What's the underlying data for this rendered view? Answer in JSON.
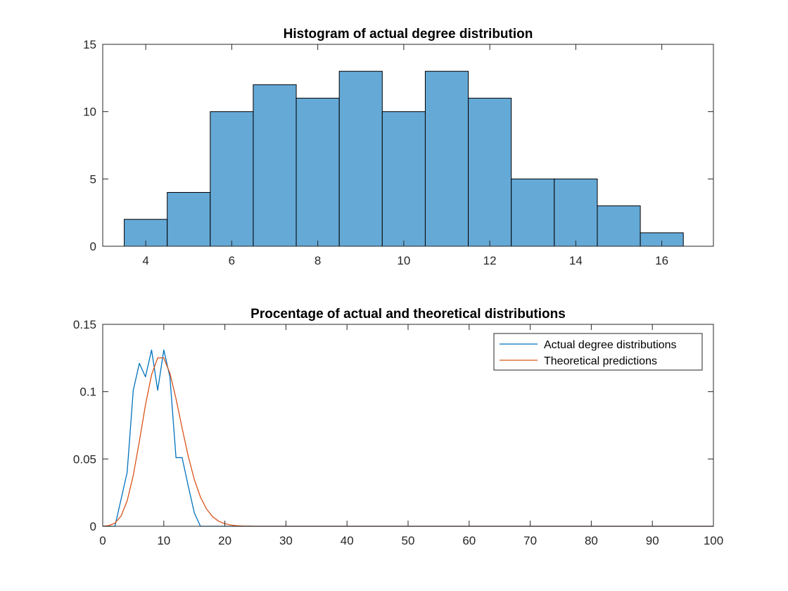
{
  "colors": {
    "bar_fill": "#65a9d7",
    "series_actual": "#0072bd",
    "series_theoretical": "#d95319",
    "axis": "#262626"
  },
  "chart_data": [
    {
      "type": "bar",
      "title": "Histogram of actual degree distribution",
      "xlabel": "",
      "ylabel": "",
      "xlim": [
        3,
        17.2
      ],
      "ylim": [
        0,
        15
      ],
      "xticks": [
        4,
        6,
        8,
        10,
        12,
        14,
        16
      ],
      "yticks": [
        0,
        5,
        10,
        15
      ],
      "categories": [
        4,
        5,
        6,
        7,
        8,
        9,
        10,
        11,
        12,
        13,
        14,
        15,
        16
      ],
      "values": [
        2,
        4,
        10,
        12,
        11,
        13,
        10,
        13,
        11,
        5,
        5,
        3,
        1
      ],
      "bin_width": 1,
      "grid": false
    },
    {
      "type": "line",
      "title": "Procentage of actual and theoretical distributions",
      "xlabel": "",
      "ylabel": "",
      "xlim": [
        0,
        100
      ],
      "ylim": [
        0,
        0.15
      ],
      "xticks": [
        0,
        10,
        20,
        30,
        40,
        50,
        60,
        70,
        80,
        90,
        100
      ],
      "yticks": [
        0,
        0.05,
        0.1,
        0.15
      ],
      "ytick_labels": [
        "0",
        "0.05",
        "0.1",
        "0.15"
      ],
      "legend_position": "top-right",
      "grid": false,
      "series": [
        {
          "name": "Actual degree distributions",
          "x": [
            0,
            1,
            2,
            3,
            4,
            5,
            6,
            7,
            8,
            9,
            10,
            11,
            12,
            13,
            14,
            15,
            16,
            17,
            100
          ],
          "y": [
            0,
            0,
            0,
            0.02,
            0.04,
            0.101,
            0.121,
            0.111,
            0.131,
            0.101,
            0.131,
            0.111,
            0.051,
            0.051,
            0.03,
            0.01,
            0,
            0,
            0
          ]
        },
        {
          "name": "Theoretical predictions",
          "x": [
            0,
            1,
            2,
            3,
            4,
            5,
            6,
            7,
            8,
            9,
            10,
            11,
            12,
            13,
            14,
            15,
            16,
            17,
            18,
            19,
            20,
            21,
            22,
            23,
            24,
            25,
            100
          ],
          "y": [
            0,
            0.0005,
            0.0023,
            0.0076,
            0.0189,
            0.0378,
            0.0631,
            0.0901,
            0.1126,
            0.1251,
            0.1251,
            0.1137,
            0.0948,
            0.0729,
            0.0521,
            0.0347,
            0.0217,
            0.0128,
            0.0071,
            0.0037,
            0.0019,
            0.0009,
            0.0004,
            0.0002,
            0.0001,
            0,
            0
          ]
        }
      ]
    }
  ]
}
